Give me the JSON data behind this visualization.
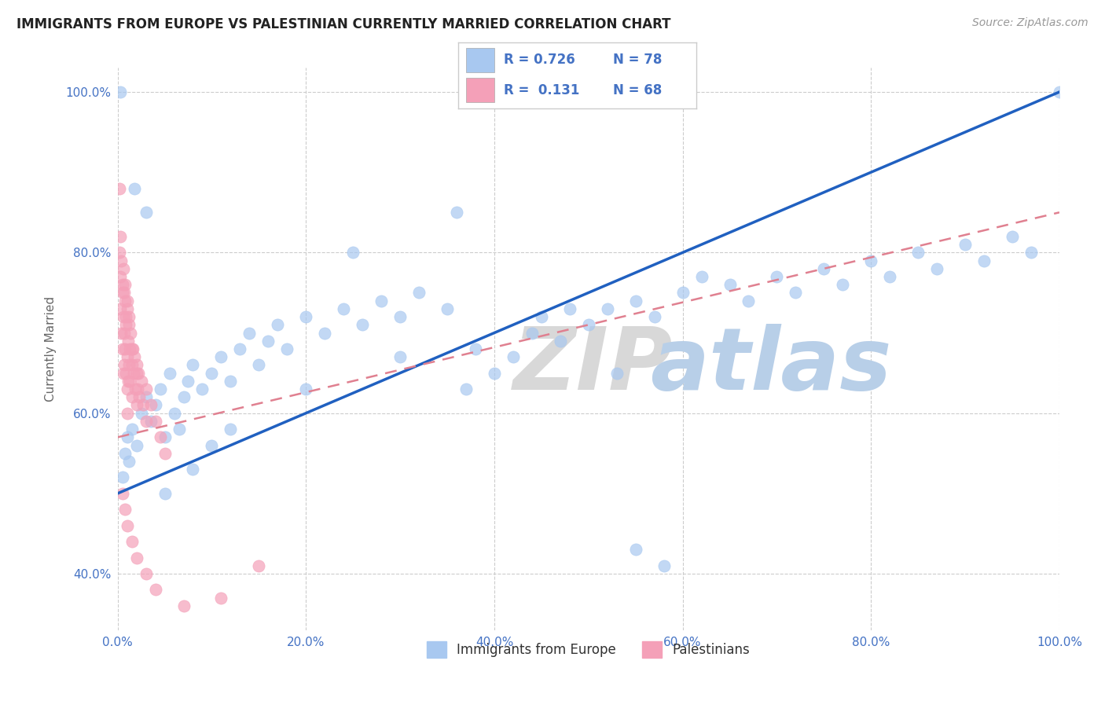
{
  "title": "IMMIGRANTS FROM EUROPE VS PALESTINIAN CURRENTLY MARRIED CORRELATION CHART",
  "source": "Source: ZipAtlas.com",
  "ylabel": "Currently Married",
  "blue_color": "#a8c8f0",
  "pink_color": "#f4a0b8",
  "blue_line_color": "#2060c0",
  "pink_line_color": "#e08090",
  "axis_label_color": "#4472c4",
  "title_color": "#222222",
  "blue_scatter": [
    [
      0.5,
      52.0
    ],
    [
      0.8,
      55.0
    ],
    [
      1.0,
      57.0
    ],
    [
      1.2,
      54.0
    ],
    [
      1.5,
      58.0
    ],
    [
      2.0,
      56.0
    ],
    [
      2.5,
      60.0
    ],
    [
      3.0,
      62.0
    ],
    [
      3.5,
      59.0
    ],
    [
      4.0,
      61.0
    ],
    [
      4.5,
      63.0
    ],
    [
      5.0,
      57.0
    ],
    [
      5.5,
      65.0
    ],
    [
      6.0,
      60.0
    ],
    [
      6.5,
      58.0
    ],
    [
      7.0,
      62.0
    ],
    [
      7.5,
      64.0
    ],
    [
      8.0,
      66.0
    ],
    [
      9.0,
      63.0
    ],
    [
      10.0,
      65.0
    ],
    [
      11.0,
      67.0
    ],
    [
      12.0,
      64.0
    ],
    [
      13.0,
      68.0
    ],
    [
      14.0,
      70.0
    ],
    [
      15.0,
      66.0
    ],
    [
      16.0,
      69.0
    ],
    [
      17.0,
      71.0
    ],
    [
      18.0,
      68.0
    ],
    [
      20.0,
      72.0
    ],
    [
      22.0,
      70.0
    ],
    [
      24.0,
      73.0
    ],
    [
      26.0,
      71.0
    ],
    [
      28.0,
      74.0
    ],
    [
      30.0,
      72.0
    ],
    [
      32.0,
      75.0
    ],
    [
      35.0,
      73.0
    ],
    [
      37.0,
      63.0
    ],
    [
      38.0,
      68.0
    ],
    [
      40.0,
      65.0
    ],
    [
      42.0,
      67.0
    ],
    [
      44.0,
      70.0
    ],
    [
      45.0,
      72.0
    ],
    [
      47.0,
      69.0
    ],
    [
      50.0,
      71.0
    ],
    [
      52.0,
      73.0
    ],
    [
      55.0,
      74.0
    ],
    [
      57.0,
      72.0
    ],
    [
      60.0,
      75.0
    ],
    [
      62.0,
      77.0
    ],
    [
      65.0,
      76.0
    ],
    [
      67.0,
      74.0
    ],
    [
      70.0,
      77.0
    ],
    [
      72.0,
      75.0
    ],
    [
      75.0,
      78.0
    ],
    [
      77.0,
      76.0
    ],
    [
      80.0,
      79.0
    ],
    [
      82.0,
      77.0
    ],
    [
      85.0,
      80.0
    ],
    [
      87.0,
      78.0
    ],
    [
      90.0,
      81.0
    ],
    [
      92.0,
      79.0
    ],
    [
      95.0,
      82.0
    ],
    [
      97.0,
      80.0
    ],
    [
      100.0,
      100.0
    ],
    [
      0.3,
      100.0
    ],
    [
      1.8,
      88.0
    ],
    [
      3.0,
      85.0
    ],
    [
      36.0,
      85.0
    ],
    [
      48.0,
      73.0
    ],
    [
      53.0,
      65.0
    ],
    [
      55.0,
      43.0
    ],
    [
      58.0,
      41.0
    ],
    [
      25.0,
      80.0
    ],
    [
      10.0,
      56.0
    ],
    [
      5.0,
      50.0
    ],
    [
      8.0,
      53.0
    ],
    [
      12.0,
      58.0
    ],
    [
      20.0,
      63.0
    ],
    [
      30.0,
      67.0
    ]
  ],
  "pink_scatter": [
    [
      0.2,
      88.0
    ],
    [
      0.3,
      77.0
    ],
    [
      0.3,
      73.0
    ],
    [
      0.4,
      70.0
    ],
    [
      0.5,
      68.0
    ],
    [
      0.5,
      75.0
    ],
    [
      0.6,
      72.0
    ],
    [
      0.6,
      65.0
    ],
    [
      0.7,
      70.0
    ],
    [
      0.7,
      66.0
    ],
    [
      0.8,
      74.0
    ],
    [
      0.8,
      68.0
    ],
    [
      0.9,
      71.0
    ],
    [
      0.9,
      65.0
    ],
    [
      1.0,
      73.0
    ],
    [
      1.0,
      67.0
    ],
    [
      1.0,
      63.0
    ],
    [
      1.0,
      60.0
    ],
    [
      1.1,
      69.0
    ],
    [
      1.1,
      64.0
    ],
    [
      1.2,
      71.0
    ],
    [
      1.2,
      66.0
    ],
    [
      1.3,
      68.0
    ],
    [
      1.3,
      64.0
    ],
    [
      1.4,
      70.0
    ],
    [
      1.5,
      66.0
    ],
    [
      1.5,
      62.0
    ],
    [
      1.6,
      68.0
    ],
    [
      1.7,
      65.0
    ],
    [
      1.8,
      67.0
    ],
    [
      1.9,
      63.0
    ],
    [
      2.0,
      65.0
    ],
    [
      2.0,
      61.0
    ],
    [
      2.1,
      63.0
    ],
    [
      2.2,
      65.0
    ],
    [
      2.3,
      62.0
    ],
    [
      2.5,
      64.0
    ],
    [
      2.7,
      61.0
    ],
    [
      3.0,
      63.0
    ],
    [
      3.0,
      59.0
    ],
    [
      3.5,
      61.0
    ],
    [
      4.0,
      59.0
    ],
    [
      4.5,
      57.0
    ],
    [
      5.0,
      55.0
    ],
    [
      0.2,
      80.0
    ],
    [
      0.3,
      82.0
    ],
    [
      0.4,
      79.0
    ],
    [
      0.5,
      76.0
    ],
    [
      0.6,
      78.0
    ],
    [
      0.7,
      75.0
    ],
    [
      0.8,
      76.0
    ],
    [
      0.9,
      72.0
    ],
    [
      1.0,
      74.0
    ],
    [
      1.2,
      72.0
    ],
    [
      1.5,
      68.0
    ],
    [
      2.0,
      66.0
    ],
    [
      0.5,
      50.0
    ],
    [
      0.8,
      48.0
    ],
    [
      1.0,
      46.0
    ],
    [
      1.5,
      44.0
    ],
    [
      2.0,
      42.0
    ],
    [
      3.0,
      40.0
    ],
    [
      4.0,
      38.0
    ],
    [
      7.0,
      36.0
    ],
    [
      15.0,
      41.0
    ],
    [
      11.0,
      37.0
    ]
  ],
  "xmin": 0.0,
  "xmax": 100.0,
  "ymin": 33.0,
  "ymax": 103.0,
  "yticks": [
    40.0,
    60.0,
    80.0,
    100.0
  ],
  "ytick_labels": [
    "40.0%",
    "60.0%",
    "80.0%",
    "100.0%"
  ],
  "xticks": [
    0.0,
    20.0,
    40.0,
    60.0,
    80.0,
    100.0
  ],
  "xtick_labels": [
    "0.0%",
    "20.0%",
    "40.0%",
    "60.0%",
    "80.0%",
    "100.0%"
  ],
  "blue_line_x0": 0.0,
  "blue_line_y0": 50.0,
  "blue_line_x1": 100.0,
  "blue_line_y1": 100.0,
  "pink_line_x0": 0.0,
  "pink_line_y0": 57.0,
  "pink_line_x1": 100.0,
  "pink_line_y1": 85.0
}
